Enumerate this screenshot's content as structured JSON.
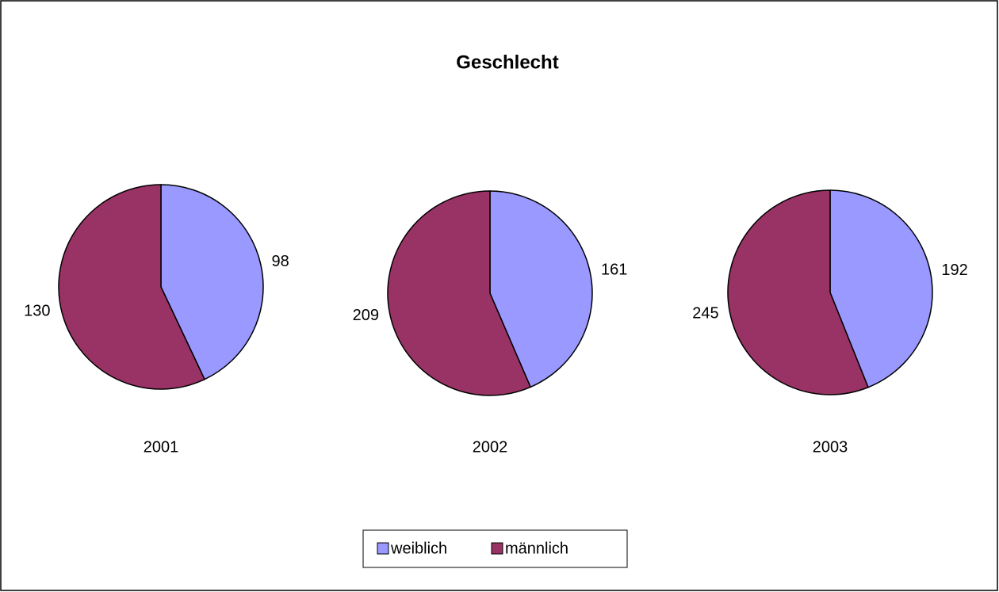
{
  "chart_data": {
    "type": "pie",
    "title": "Geschlecht",
    "categories": [
      "weiblich",
      "männlich"
    ],
    "colors": [
      "#9999ff",
      "#993366"
    ],
    "series": [
      {
        "name": "2001",
        "values": [
          98,
          130
        ]
      },
      {
        "name": "2002",
        "values": [
          161,
          209
        ]
      },
      {
        "name": "2003",
        "values": [
          192,
          245
        ]
      }
    ],
    "legend": "bottom"
  }
}
